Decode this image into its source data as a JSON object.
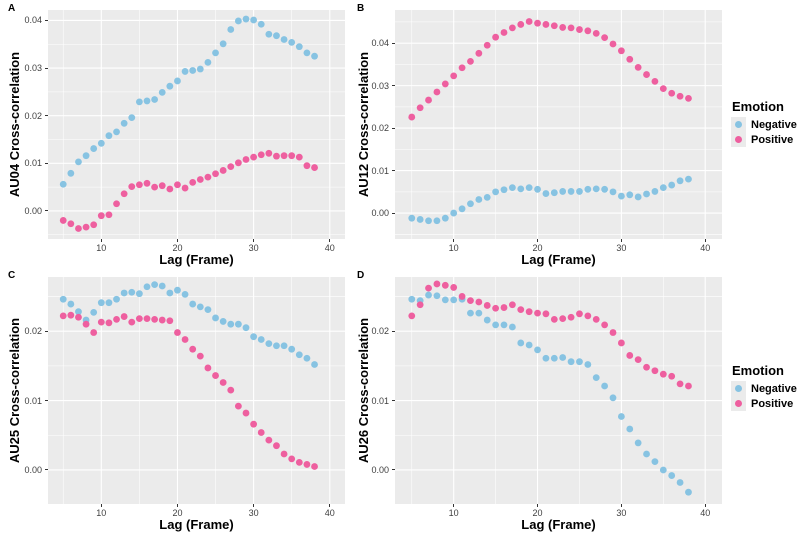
{
  "style": {
    "panel_bg": "#EBEBEB",
    "grid_color": "#FFFFFF",
    "tick_label_color": "#404040",
    "axis_title_color": "#000000",
    "negative_color": "#87C3E2",
    "positive_color": "#EE5F9F"
  },
  "legend": {
    "title": "Emotion",
    "entries": [
      {
        "label": "Negative",
        "color_key": "negative"
      },
      {
        "label": "Positive",
        "color_key": "positive"
      }
    ]
  },
  "chart_data": [
    {
      "type": "scatter",
      "panel_label": "A",
      "ylabel": "AU04 Cross-correlation",
      "xlabel": "Lag (Frame)",
      "xlim": [
        3,
        42
      ],
      "ylim": [
        -0.0059,
        0.0422
      ],
      "x_ticks": [
        {
          "value": 10,
          "label": "10"
        },
        {
          "value": 20,
          "label": "20"
        },
        {
          "value": 30,
          "label": "30"
        },
        {
          "value": 40,
          "label": "40"
        }
      ],
      "y_ticks": [
        {
          "value": 0,
          "label": "0.00"
        },
        {
          "value": 0.01,
          "label": "0.01"
        },
        {
          "value": 0.02,
          "label": "0.02"
        },
        {
          "value": 0.03,
          "label": "0.03"
        },
        {
          "value": 0.04,
          "label": "0.04"
        }
      ],
      "x": [
        5,
        6,
        7,
        8,
        9,
        10,
        11,
        12,
        13,
        14,
        15,
        16,
        17,
        18,
        19,
        20,
        21,
        22,
        23,
        24,
        25,
        26,
        27,
        28,
        29,
        30,
        31,
        32,
        33,
        34,
        35,
        36,
        37,
        38
      ],
      "series": [
        {
          "name": "Negative",
          "values": [
            0.0056,
            0.0079,
            0.0103,
            0.0116,
            0.0131,
            0.0142,
            0.0158,
            0.0166,
            0.0184,
            0.0196,
            0.0229,
            0.0231,
            0.0234,
            0.0249,
            0.0262,
            0.0273,
            0.0293,
            0.0295,
            0.0298,
            0.0312,
            0.0332,
            0.0351,
            0.0381,
            0.0399,
            0.0403,
            0.0401,
            0.0392,
            0.0371,
            0.0368,
            0.036,
            0.0354,
            0.0345,
            0.0332,
            0.0325
          ]
        },
        {
          "name": "Positive",
          "values": [
            -0.002,
            -0.0027,
            -0.0037,
            -0.0034,
            -0.0029,
            -0.001,
            -0.0008,
            0.0015,
            0.0036,
            0.0051,
            0.0055,
            0.0058,
            0.005,
            0.0053,
            0.0046,
            0.0055,
            0.0048,
            0.006,
            0.0066,
            0.0071,
            0.0078,
            0.0085,
            0.0093,
            0.0101,
            0.0108,
            0.0113,
            0.0118,
            0.0121,
            0.0115,
            0.0116,
            0.0116,
            0.0113,
            0.0095,
            0.0091
          ]
        }
      ]
    },
    {
      "type": "scatter",
      "panel_label": "B",
      "ylabel": "AU12 Cross-correlation",
      "xlabel": "Lag (Frame)",
      "xlim": [
        3,
        42
      ],
      "ylim": [
        -0.0061,
        0.0478
      ],
      "x_ticks": [
        {
          "value": 10,
          "label": "10"
        },
        {
          "value": 20,
          "label": "20"
        },
        {
          "value": 30,
          "label": "30"
        },
        {
          "value": 40,
          "label": "40"
        }
      ],
      "y_ticks": [
        {
          "value": 0,
          "label": "0.00"
        },
        {
          "value": 0.01,
          "label": "0.01"
        },
        {
          "value": 0.02,
          "label": "0.02"
        },
        {
          "value": 0.03,
          "label": "0.03"
        },
        {
          "value": 0.04,
          "label": "0.04"
        }
      ],
      "x": [
        5,
        6,
        7,
        8,
        9,
        10,
        11,
        12,
        13,
        14,
        15,
        16,
        17,
        18,
        19,
        20,
        21,
        22,
        23,
        24,
        25,
        26,
        27,
        28,
        29,
        30,
        31,
        32,
        33,
        34,
        35,
        36,
        37,
        38
      ],
      "series": [
        {
          "name": "Negative",
          "values": [
            -0.0012,
            -0.0015,
            -0.0018,
            -0.0018,
            -0.0012,
            0,
            0.001,
            0.0022,
            0.0032,
            0.0037,
            0.005,
            0.0055,
            0.006,
            0.0057,
            0.006,
            0.0056,
            0.0046,
            0.0048,
            0.0051,
            0.0051,
            0.0051,
            0.0056,
            0.0057,
            0.0056,
            0.005,
            0.004,
            0.0043,
            0.0038,
            0.0045,
            0.0051,
            0.006,
            0.0066,
            0.0076,
            0.008
          ]
        },
        {
          "name": "Positive",
          "values": [
            0.0226,
            0.0248,
            0.0266,
            0.0285,
            0.0304,
            0.0323,
            0.0342,
            0.0357,
            0.0376,
            0.0395,
            0.0414,
            0.0425,
            0.0436,
            0.0444,
            0.0451,
            0.0447,
            0.0444,
            0.0441,
            0.0437,
            0.0436,
            0.0432,
            0.0429,
            0.0423,
            0.0413,
            0.0398,
            0.0382,
            0.0362,
            0.0343,
            0.0326,
            0.031,
            0.0293,
            0.0282,
            0.0275,
            0.027
          ]
        }
      ]
    },
    {
      "type": "scatter",
      "panel_label": "C",
      "ylabel": "AU25 Cross-correlation",
      "xlabel": "Lag (Frame)",
      "xlim": [
        3,
        42
      ],
      "ylim": [
        -0.0049,
        0.0278
      ],
      "x_ticks": [
        {
          "value": 10,
          "label": "10"
        },
        {
          "value": 20,
          "label": "20"
        },
        {
          "value": 30,
          "label": "30"
        },
        {
          "value": 40,
          "label": "40"
        }
      ],
      "y_ticks": [
        {
          "value": 0,
          "label": "0.00"
        },
        {
          "value": 0.01,
          "label": "0.01"
        },
        {
          "value": 0.02,
          "label": "0.02"
        }
      ],
      "x": [
        5,
        6,
        7,
        8,
        9,
        10,
        11,
        12,
        13,
        14,
        15,
        16,
        17,
        18,
        19,
        20,
        21,
        22,
        23,
        24,
        25,
        26,
        27,
        28,
        29,
        30,
        31,
        32,
        33,
        34,
        35,
        36,
        37,
        38
      ],
      "series": [
        {
          "name": "Negative",
          "values": [
            0.0246,
            0.0239,
            0.0228,
            0.0216,
            0.0227,
            0.0241,
            0.0241,
            0.0246,
            0.0255,
            0.0256,
            0.0254,
            0.0264,
            0.0267,
            0.0265,
            0.0255,
            0.0259,
            0.0253,
            0.0239,
            0.0235,
            0.0231,
            0.0219,
            0.0214,
            0.021,
            0.021,
            0.0205,
            0.0192,
            0.0188,
            0.0182,
            0.0179,
            0.0179,
            0.0174,
            0.0166,
            0.0161,
            0.0152
          ]
        },
        {
          "name": "Positive",
          "values": [
            0.0222,
            0.0223,
            0.022,
            0.021,
            0.0198,
            0.0213,
            0.0212,
            0.0217,
            0.0221,
            0.0213,
            0.0218,
            0.0218,
            0.0217,
            0.0216,
            0.0215,
            0.0198,
            0.0188,
            0.0174,
            0.0164,
            0.0147,
            0.0136,
            0.0126,
            0.0115,
            0.0092,
            0.0082,
            0.0066,
            0.0054,
            0.0043,
            0.0035,
            0.0023,
            0.0016,
            0.0011,
            0.0008,
            0.0005
          ]
        }
      ]
    },
    {
      "type": "scatter",
      "panel_label": "D",
      "ylabel": "AU26 Cross-correlation",
      "xlabel": "Lag (Frame)",
      "xlim": [
        3,
        42
      ],
      "ylim": [
        -0.0049,
        0.0278
      ],
      "x_ticks": [
        {
          "value": 10,
          "label": "10"
        },
        {
          "value": 20,
          "label": "20"
        },
        {
          "value": 30,
          "label": "30"
        },
        {
          "value": 40,
          "label": "40"
        }
      ],
      "y_ticks": [
        {
          "value": 0,
          "label": "0.00"
        },
        {
          "value": 0.01,
          "label": "0.01"
        },
        {
          "value": 0.02,
          "label": "0.02"
        }
      ],
      "x": [
        5,
        6,
        7,
        8,
        9,
        10,
        11,
        12,
        13,
        14,
        15,
        16,
        17,
        18,
        19,
        20,
        21,
        22,
        23,
        24,
        25,
        26,
        27,
        28,
        29,
        30,
        31,
        32,
        33,
        34,
        35,
        36,
        37,
        38
      ],
      "series": [
        {
          "name": "Negative",
          "values": [
            0.0246,
            0.0244,
            0.0252,
            0.0251,
            0.0245,
            0.0245,
            0.0246,
            0.0226,
            0.0226,
            0.0216,
            0.0209,
            0.0209,
            0.0206,
            0.0183,
            0.018,
            0.0173,
            0.0161,
            0.0161,
            0.0162,
            0.0156,
            0.0156,
            0.0152,
            0.0133,
            0.0121,
            0.0104,
            0.0077,
            0.0059,
            0.0039,
            0.0023,
            0.0012,
            0,
            -0.0008,
            -0.0018,
            -0.0032
          ]
        },
        {
          "name": "Positive",
          "values": [
            0.0222,
            0.0238,
            0.0262,
            0.0268,
            0.0266,
            0.0263,
            0.025,
            0.0244,
            0.0242,
            0.0237,
            0.0233,
            0.0234,
            0.0238,
            0.0231,
            0.0228,
            0.0226,
            0.0225,
            0.0217,
            0.0218,
            0.022,
            0.0225,
            0.0222,
            0.0217,
            0.0209,
            0.0198,
            0.0183,
            0.0165,
            0.0159,
            0.0148,
            0.0143,
            0.0138,
            0.0135,
            0.0124,
            0.0121
          ]
        }
      ]
    }
  ]
}
